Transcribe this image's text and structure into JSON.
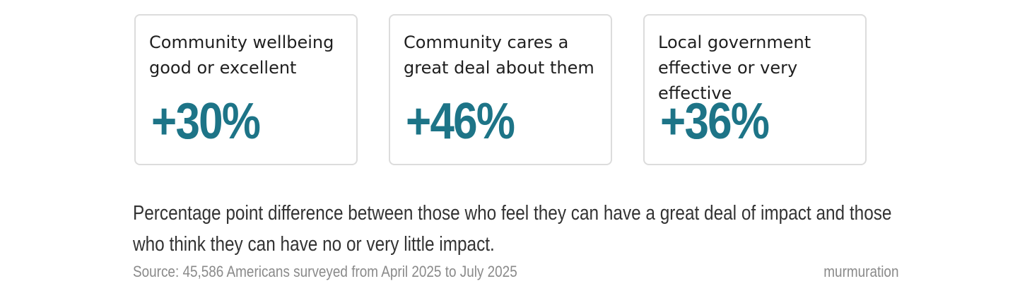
{
  "chart_data": {
    "type": "table",
    "cards": [
      {
        "label": "Community wellbeing good or excellent",
        "value": 30,
        "value_text": "+30%"
      },
      {
        "label": "Community cares a great deal about them",
        "value": 46,
        "value_text": "+46%"
      },
      {
        "label": "Local government effective or very effective",
        "value": 36,
        "value_text": "+36%"
      }
    ],
    "caption": "Percentage point difference between those who feel they can have a great deal of impact and those who think they can have no or very little impact.",
    "source": "Source: 45,586 Americans surveyed from April 2025 to July 2025",
    "brand": "murmuration"
  },
  "colors": {
    "value": "#1d7487",
    "label": "#1f1f1f",
    "caption": "#333333",
    "muted": "#8a8a8a",
    "card_border": "#dcdcdc"
  }
}
